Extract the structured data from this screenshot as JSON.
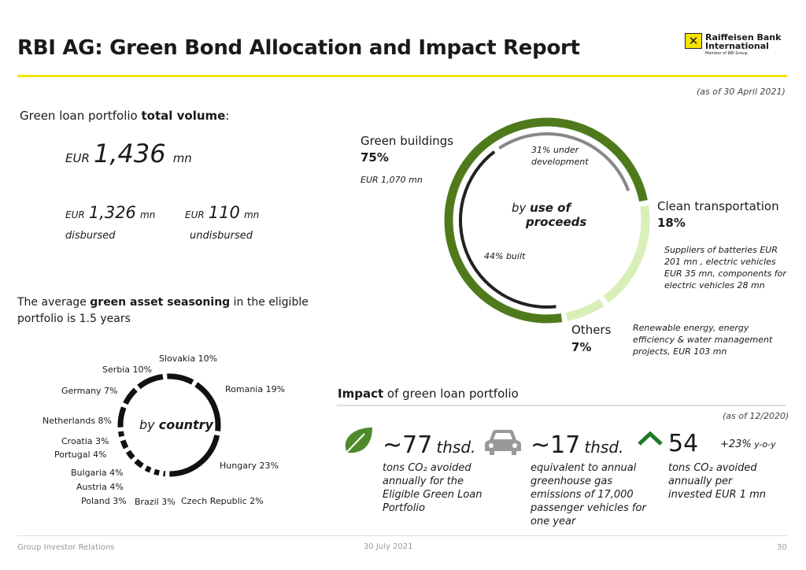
{
  "header": {
    "title": "RBI AG: Green Bond Allocation and Impact Report",
    "logo_line1": "Raiffeisen Bank",
    "logo_line2": "International",
    "logo_sub": "Member of RBI Group",
    "as_of": "(as of 30 April 2021)"
  },
  "portfolio": {
    "label_prefix": "Green loan portfolio ",
    "label_bold": "total volume",
    "label_suffix": ":",
    "total_cur": "EUR",
    "total_value": "1,436",
    "total_unit": "mn",
    "disbursed_cur": "EUR",
    "disbursed_value": "1,326",
    "disbursed_unit": "mn",
    "disbursed_label": "disbursed",
    "undisbursed_cur": "EUR",
    "undisbursed_value": "110",
    "undisbursed_unit": "mn",
    "undisbursed_label": "undisbursed"
  },
  "seasoning": {
    "prefix": "The average ",
    "bold": "green asset seasoning",
    "suffix": " in the eligible",
    "line2": "portfolio is 1.5 years"
  },
  "chart_data": [
    {
      "type": "pie",
      "title_prefix": "by ",
      "title_bold1": "use of",
      "title_bold2": "proceeds",
      "slices": [
        {
          "name": "Green buildings",
          "pct": "75%",
          "value": 75,
          "color": "#4f7a1c",
          "detail": "EUR 1,070 mn"
        },
        {
          "name": "Clean transportation",
          "pct": "18%",
          "value": 18,
          "color": "#d9efb8",
          "detail": "Suppliers of batteries EUR 201 mn , electric vehicles EUR 35 mn, components for electric vehicles 28 mn"
        },
        {
          "name": "Others",
          "pct": "7%",
          "value": 7,
          "color": "#d9efb8",
          "detail": "Renewable energy, energy efficiency & water management projects, EUR 103 mn"
        }
      ],
      "sub_slices": [
        {
          "name": "31% under development",
          "value": 31,
          "color": "#888888"
        },
        {
          "name": "44% built",
          "value": 44,
          "color": "#222222"
        }
      ]
    },
    {
      "type": "pie",
      "title_prefix": "by ",
      "title_bold": "country",
      "slices": [
        {
          "name": "Slovakia 10%",
          "value": 10
        },
        {
          "name": "Romania 19%",
          "value": 19
        },
        {
          "name": "Hungary 23%",
          "value": 23
        },
        {
          "name": "Czech Republic 2%",
          "value": 2
        },
        {
          "name": "Brazil 3%",
          "value": 3
        },
        {
          "name": "Poland 3%",
          "value": 3
        },
        {
          "name": "Austria 4%",
          "value": 4
        },
        {
          "name": "Bulgaria 4%",
          "value": 4
        },
        {
          "name": "Portugal 4%",
          "value": 4
        },
        {
          "name": "Croatia 3%",
          "value": 3
        },
        {
          "name": "Netherlands 8%",
          "value": 8
        },
        {
          "name": "Germany 7%",
          "value": 7
        },
        {
          "name": "Serbia 10%",
          "value": 10
        }
      ]
    }
  ],
  "impact": {
    "title_bold": "Impact",
    "title_rest": " of green loan portfolio",
    "as_of": "(as of 12/2020)",
    "items": [
      {
        "value": "~77",
        "unit": "thsd.",
        "desc": "tons CO₂ avoided annually for the Eligible Green Loan Portfolio"
      },
      {
        "value": "~17",
        "unit": "thsd.",
        "desc": "equivalent to annual greenhouse gas emissions of 17,000 passenger vehicles for one year"
      },
      {
        "value": "54",
        "change": "+23%",
        "change_unit": " y-o-y",
        "desc": "tons CO₂ avoided annually per invested EUR 1 mn"
      }
    ]
  },
  "footer": {
    "left": "Group Investor Relations",
    "date": "30 July 2021",
    "page": "30"
  }
}
